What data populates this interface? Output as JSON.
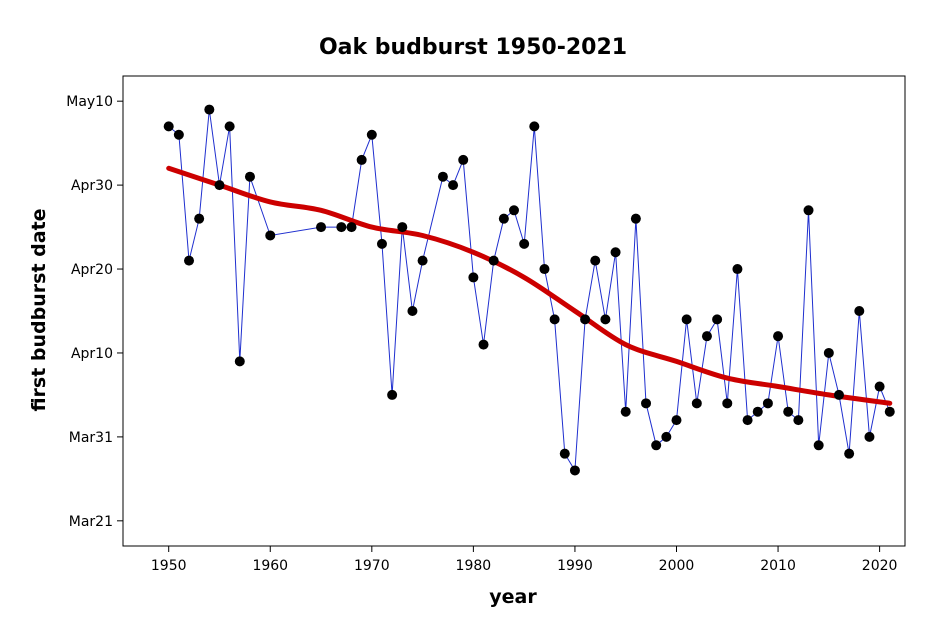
{
  "chart_data": {
    "type": "scatter",
    "title": "Oak budburst 1950-2021",
    "xlabel": "year",
    "ylabel": "first budburst date",
    "xlim": [
      1945.5,
      2022.5
    ],
    "ylim": [
      "2023-03-18",
      "2023-05-13"
    ],
    "x_ticks": [
      1950,
      1960,
      1970,
      1980,
      1990,
      2000,
      2010,
      2020
    ],
    "y_ticks": [
      {
        "label": "May10",
        "date": "2023-05-10"
      },
      {
        "label": "Apr30",
        "date": "2023-04-30"
      },
      {
        "label": "Apr20",
        "date": "2023-04-20"
      },
      {
        "label": "Apr10",
        "date": "2023-04-10"
      },
      {
        "label": "Mar31",
        "date": "2023-03-31"
      },
      {
        "label": "Mar21",
        "date": "2023-03-21"
      }
    ],
    "grid": false,
    "series": [
      {
        "style": "points connected by thin blue line",
        "color_line": "#1f2fcf",
        "color_marker": "#000000",
        "points": [
          {
            "x": 1950,
            "y": "2023-05-07"
          },
          {
            "x": 1951,
            "y": "2023-05-06"
          },
          {
            "x": 1952,
            "y": "2023-04-21"
          },
          {
            "x": 1953,
            "y": "2023-04-26"
          },
          {
            "x": 1954,
            "y": "2023-05-09"
          },
          {
            "x": 1955,
            "y": "2023-04-30"
          },
          {
            "x": 1956,
            "y": "2023-05-07"
          },
          {
            "x": 1957,
            "y": "2023-04-09"
          },
          {
            "x": 1958,
            "y": "2023-05-01"
          },
          {
            "x": 1960,
            "y": "2023-04-24"
          },
          {
            "x": 1965,
            "y": "2023-04-25"
          },
          {
            "x": 1967,
            "y": "2023-04-25"
          },
          {
            "x": 1968,
            "y": "2023-04-25"
          },
          {
            "x": 1969,
            "y": "2023-05-03"
          },
          {
            "x": 1970,
            "y": "2023-05-06"
          },
          {
            "x": 1971,
            "y": "2023-04-23"
          },
          {
            "x": 1972,
            "y": "2023-04-05"
          },
          {
            "x": 1973,
            "y": "2023-04-25"
          },
          {
            "x": 1974,
            "y": "2023-04-15"
          },
          {
            "x": 1975,
            "y": "2023-04-21"
          },
          {
            "x": 1977,
            "y": "2023-05-01"
          },
          {
            "x": 1978,
            "y": "2023-04-30"
          },
          {
            "x": 1979,
            "y": "2023-05-03"
          },
          {
            "x": 1980,
            "y": "2023-04-19"
          },
          {
            "x": 1981,
            "y": "2023-04-11"
          },
          {
            "x": 1982,
            "y": "2023-04-21"
          },
          {
            "x": 1983,
            "y": "2023-04-26"
          },
          {
            "x": 1984,
            "y": "2023-04-27"
          },
          {
            "x": 1985,
            "y": "2023-04-23"
          },
          {
            "x": 1986,
            "y": "2023-05-07"
          },
          {
            "x": 1987,
            "y": "2023-04-20"
          },
          {
            "x": 1988,
            "y": "2023-04-14"
          },
          {
            "x": 1989,
            "y": "2023-03-29"
          },
          {
            "x": 1990,
            "y": "2023-03-27"
          },
          {
            "x": 1991,
            "y": "2023-04-14"
          },
          {
            "x": 1992,
            "y": "2023-04-21"
          },
          {
            "x": 1993,
            "y": "2023-04-14"
          },
          {
            "x": 1994,
            "y": "2023-04-22"
          },
          {
            "x": 1995,
            "y": "2023-04-03"
          },
          {
            "x": 1996,
            "y": "2023-04-26"
          },
          {
            "x": 1997,
            "y": "2023-04-04"
          },
          {
            "x": 1998,
            "y": "2023-03-30"
          },
          {
            "x": 1999,
            "y": "2023-03-31"
          },
          {
            "x": 2000,
            "y": "2023-04-02"
          },
          {
            "x": 2001,
            "y": "2023-04-14"
          },
          {
            "x": 2002,
            "y": "2023-04-04"
          },
          {
            "x": 2003,
            "y": "2023-04-12"
          },
          {
            "x": 2004,
            "y": "2023-04-14"
          },
          {
            "x": 2005,
            "y": "2023-04-04"
          },
          {
            "x": 2006,
            "y": "2023-04-20"
          },
          {
            "x": 2007,
            "y": "2023-04-02"
          },
          {
            "x": 2008,
            "y": "2023-04-03"
          },
          {
            "x": 2009,
            "y": "2023-04-04"
          },
          {
            "x": 2010,
            "y": "2023-04-12"
          },
          {
            "x": 2011,
            "y": "2023-04-03"
          },
          {
            "x": 2012,
            "y": "2023-04-02"
          },
          {
            "x": 2013,
            "y": "2023-04-27"
          },
          {
            "x": 2014,
            "y": "2023-03-30"
          },
          {
            "x": 2015,
            "y": "2023-04-10"
          },
          {
            "x": 2016,
            "y": "2023-04-05"
          },
          {
            "x": 2017,
            "y": "2023-03-29"
          },
          {
            "x": 2018,
            "y": "2023-04-15"
          },
          {
            "x": 2019,
            "y": "2023-03-31"
          },
          {
            "x": 2020,
            "y": "2023-04-06"
          },
          {
            "x": 2021,
            "y": "2023-04-03"
          }
        ]
      },
      {
        "style": "smoothed trend line",
        "color_line": "#cc0000",
        "points": [
          {
            "x": 1950,
            "y": "2023-05-02"
          },
          {
            "x": 1955,
            "y": "2023-04-30"
          },
          {
            "x": 1960,
            "y": "2023-04-28"
          },
          {
            "x": 1965,
            "y": "2023-04-27"
          },
          {
            "x": 1970,
            "y": "2023-04-25"
          },
          {
            "x": 1975,
            "y": "2023-04-24"
          },
          {
            "x": 1980,
            "y": "2023-04-22"
          },
          {
            "x": 1985,
            "y": "2023-04-19"
          },
          {
            "x": 1990,
            "y": "2023-04-15"
          },
          {
            "x": 1995,
            "y": "2023-04-11"
          },
          {
            "x": 2000,
            "y": "2023-04-09"
          },
          {
            "x": 2005,
            "y": "2023-04-07"
          },
          {
            "x": 2010,
            "y": "2023-04-06"
          },
          {
            "x": 2015,
            "y": "2023-04-05"
          },
          {
            "x": 2021,
            "y": "2023-04-04"
          }
        ]
      }
    ]
  }
}
